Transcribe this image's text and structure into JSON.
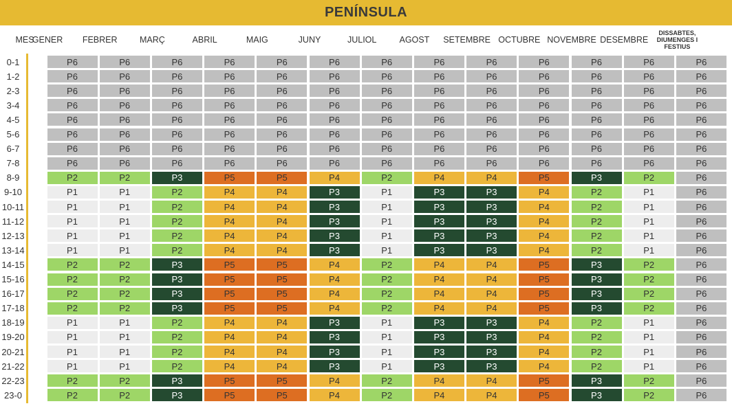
{
  "title": "PENÍNSULA",
  "columns": [
    "MES",
    "GENER",
    "FEBRER",
    "MARÇ",
    "ABRIL",
    "MAIG",
    "JUNY",
    "JULIOL",
    "AGOST",
    "SETEMBRE",
    "OCTUBRE",
    "NOVEMBRE",
    "DESEMBRE",
    "DISSABTES, DIUMENGES I FESTIUS"
  ],
  "colors": {
    "P1": "#ededed",
    "P2": "#9ed667",
    "P3": "#244a30",
    "P4": "#edb63a",
    "P5": "#dd6e22",
    "P6": "#bfbfbf",
    "accent": "#e6ba32"
  },
  "rows": [
    {
      "hour": "0-1",
      "cells": [
        "P6",
        "P6",
        "P6",
        "P6",
        "P6",
        "P6",
        "P6",
        "P6",
        "P6",
        "P6",
        "P6",
        "P6",
        "P6"
      ]
    },
    {
      "hour": "1-2",
      "cells": [
        "P6",
        "P6",
        "P6",
        "P6",
        "P6",
        "P6",
        "P6",
        "P6",
        "P6",
        "P6",
        "P6",
        "P6",
        "P6"
      ]
    },
    {
      "hour": "2-3",
      "cells": [
        "P6",
        "P6",
        "P6",
        "P6",
        "P6",
        "P6",
        "P6",
        "P6",
        "P6",
        "P6",
        "P6",
        "P6",
        "P6"
      ]
    },
    {
      "hour": "3-4",
      "cells": [
        "P6",
        "P6",
        "P6",
        "P6",
        "P6",
        "P6",
        "P6",
        "P6",
        "P6",
        "P6",
        "P6",
        "P6",
        "P6"
      ]
    },
    {
      "hour": "4-5",
      "cells": [
        "P6",
        "P6",
        "P6",
        "P6",
        "P6",
        "P6",
        "P6",
        "P6",
        "P6",
        "P6",
        "P6",
        "P6",
        "P6"
      ]
    },
    {
      "hour": "5-6",
      "cells": [
        "P6",
        "P6",
        "P6",
        "P6",
        "P6",
        "P6",
        "P6",
        "P6",
        "P6",
        "P6",
        "P6",
        "P6",
        "P6"
      ]
    },
    {
      "hour": "6-7",
      "cells": [
        "P6",
        "P6",
        "P6",
        "P6",
        "P6",
        "P6",
        "P6",
        "P6",
        "P6",
        "P6",
        "P6",
        "P6",
        "P6"
      ]
    },
    {
      "hour": "7-8",
      "cells": [
        "P6",
        "P6",
        "P6",
        "P6",
        "P6",
        "P6",
        "P6",
        "P6",
        "P6",
        "P6",
        "P6",
        "P6",
        "P6"
      ]
    },
    {
      "hour": "8-9",
      "cells": [
        "P2",
        "P2",
        "P3",
        "P5",
        "P5",
        "P4",
        "P2",
        "P4",
        "P4",
        "P5",
        "P3",
        "P2",
        "P6"
      ]
    },
    {
      "hour": "9-10",
      "cells": [
        "P1",
        "P1",
        "P2",
        "P4",
        "P4",
        "P3",
        "P1",
        "P3",
        "P3",
        "P4",
        "P2",
        "P1",
        "P6"
      ]
    },
    {
      "hour": "10-11",
      "cells": [
        "P1",
        "P1",
        "P2",
        "P4",
        "P4",
        "P3",
        "P1",
        "P3",
        "P3",
        "P4",
        "P2",
        "P1",
        "P6"
      ]
    },
    {
      "hour": "11-12",
      "cells": [
        "P1",
        "P1",
        "P2",
        "P4",
        "P4",
        "P3",
        "P1",
        "P3",
        "P3",
        "P4",
        "P2",
        "P1",
        "P6"
      ]
    },
    {
      "hour": "12-13",
      "cells": [
        "P1",
        "P1",
        "P2",
        "P4",
        "P4",
        "P3",
        "P1",
        "P3",
        "P3",
        "P4",
        "P2",
        "P1",
        "P6"
      ]
    },
    {
      "hour": "13-14",
      "cells": [
        "P1",
        "P1",
        "P2",
        "P4",
        "P4",
        "P3",
        "P1",
        "P3",
        "P3",
        "P4",
        "P2",
        "P1",
        "P6"
      ]
    },
    {
      "hour": "14-15",
      "cells": [
        "P2",
        "P2",
        "P3",
        "P5",
        "P5",
        "P4",
        "P2",
        "P4",
        "P4",
        "P5",
        "P3",
        "P2",
        "P6"
      ]
    },
    {
      "hour": "15-16",
      "cells": [
        "P2",
        "P2",
        "P3",
        "P5",
        "P5",
        "P4",
        "P2",
        "P4",
        "P4",
        "P5",
        "P3",
        "P2",
        "P6"
      ]
    },
    {
      "hour": "16-17",
      "cells": [
        "P2",
        "P2",
        "P3",
        "P5",
        "P5",
        "P4",
        "P2",
        "P4",
        "P4",
        "P5",
        "P3",
        "P2",
        "P6"
      ]
    },
    {
      "hour": "17-18",
      "cells": [
        "P2",
        "P2",
        "P3",
        "P5",
        "P5",
        "P4",
        "P2",
        "P4",
        "P4",
        "P5",
        "P3",
        "P2",
        "P6"
      ]
    },
    {
      "hour": "18-19",
      "cells": [
        "P1",
        "P1",
        "P2",
        "P4",
        "P4",
        "P3",
        "P1",
        "P3",
        "P3",
        "P4",
        "P2",
        "P1",
        "P6"
      ]
    },
    {
      "hour": "19-20",
      "cells": [
        "P1",
        "P1",
        "P2",
        "P4",
        "P4",
        "P3",
        "P1",
        "P3",
        "P3",
        "P4",
        "P2",
        "P1",
        "P6"
      ]
    },
    {
      "hour": "20-21",
      "cells": [
        "P1",
        "P1",
        "P2",
        "P4",
        "P4",
        "P3",
        "P1",
        "P3",
        "P3",
        "P4",
        "P2",
        "P1",
        "P6"
      ]
    },
    {
      "hour": "21-22",
      "cells": [
        "P1",
        "P1",
        "P2",
        "P4",
        "P4",
        "P3",
        "P1",
        "P3",
        "P3",
        "P4",
        "P2",
        "P1",
        "P6"
      ]
    },
    {
      "hour": "22-23",
      "cells": [
        "P2",
        "P2",
        "P3",
        "P5",
        "P5",
        "P4",
        "P2",
        "P4",
        "P4",
        "P5",
        "P3",
        "P2",
        "P6"
      ]
    },
    {
      "hour": "23-0",
      "cells": [
        "P2",
        "P2",
        "P3",
        "P5",
        "P5",
        "P4",
        "P2",
        "P4",
        "P4",
        "P5",
        "P3",
        "P2",
        "P6"
      ]
    }
  ]
}
